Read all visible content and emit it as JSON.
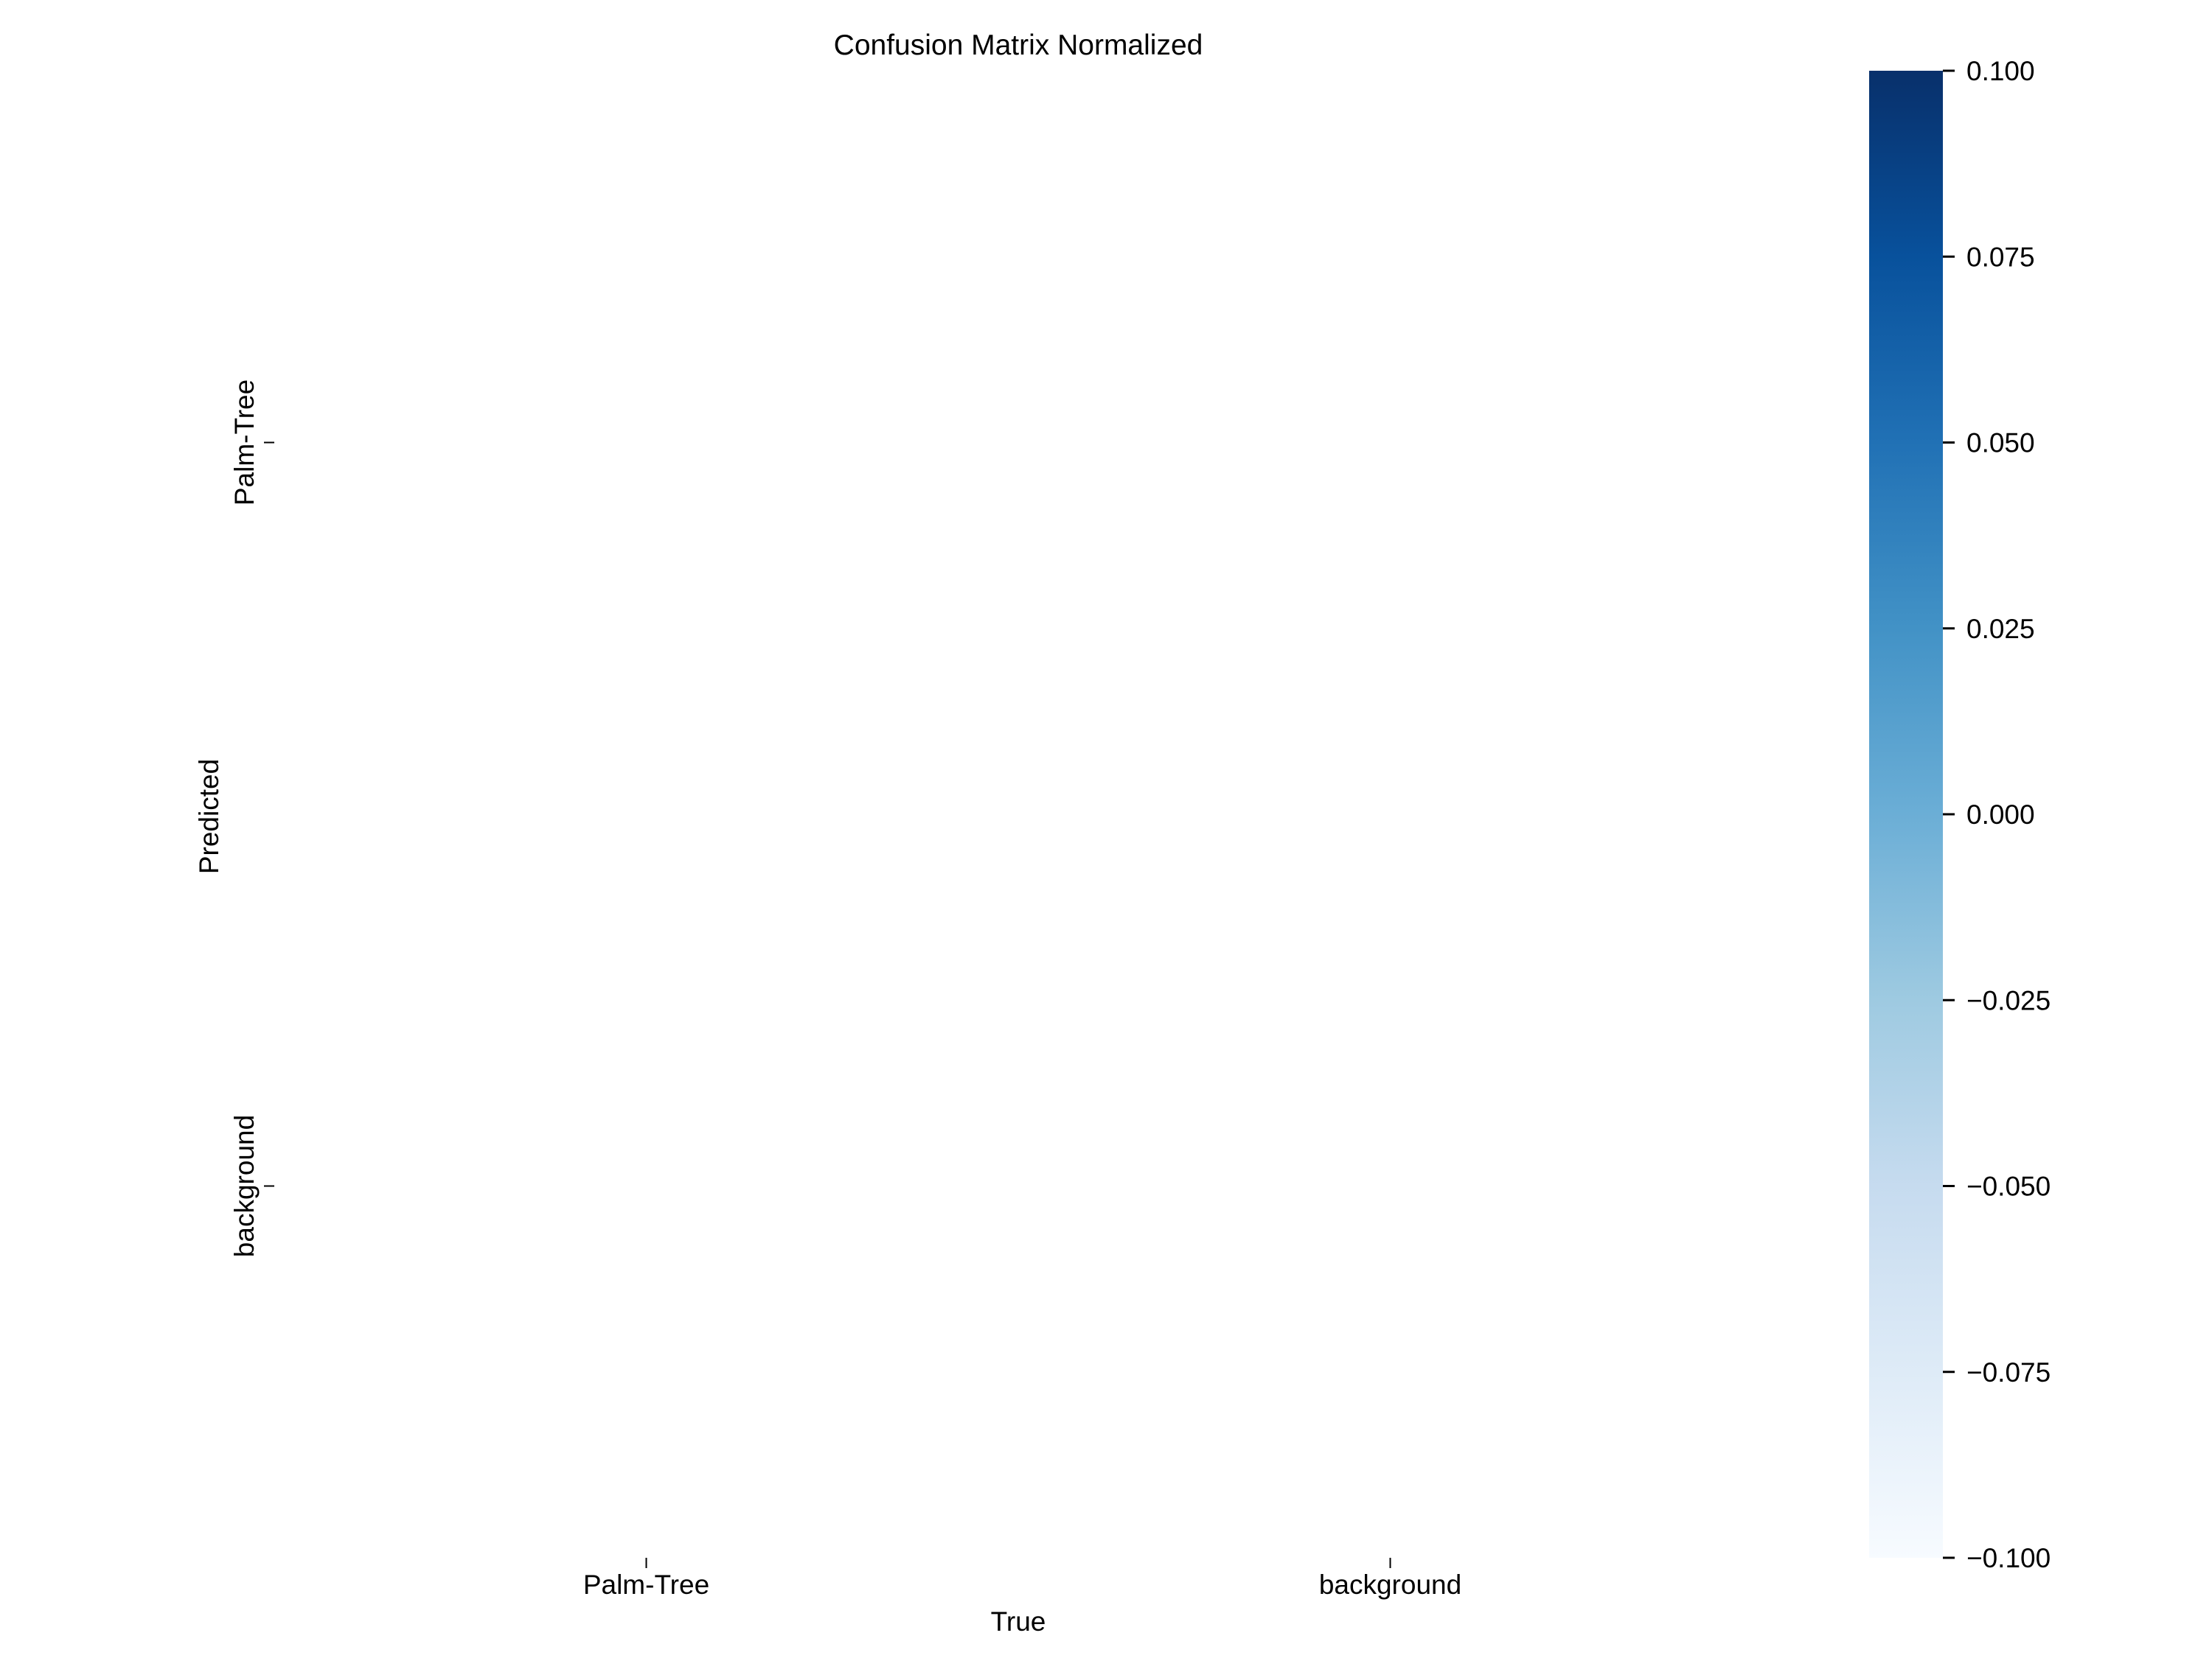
{
  "chart_data": {
    "type": "heatmap",
    "title": "Confusion Matrix Normalized",
    "xlabel": "True",
    "ylabel": "Predicted",
    "x_categories": [
      "Palm-Tree",
      "background"
    ],
    "y_categories": [
      "Palm-Tree",
      "background"
    ],
    "values": [
      [
        null,
        null
      ],
      [
        null,
        null
      ]
    ],
    "colorbar": {
      "colormap": "Blues",
      "vmin": -0.1,
      "vmax": 0.1,
      "ticks": [
        "0.100",
        "0.075",
        "0.050",
        "0.025",
        "0.000",
        "−0.025",
        "−0.050",
        "−0.075",
        "−0.100"
      ],
      "colors": [
        "#f7fbff",
        "#deebf7",
        "#c6dbef",
        "#9ecae1",
        "#6baed6",
        "#4292c6",
        "#2171b5",
        "#08519c",
        "#08306b"
      ]
    },
    "grid": false
  }
}
